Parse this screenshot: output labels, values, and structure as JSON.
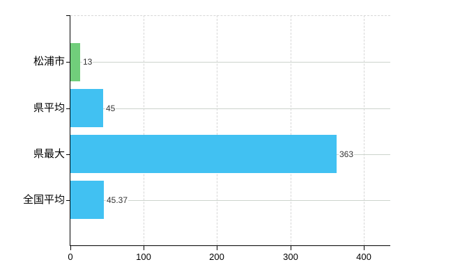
{
  "chart_data": {
    "type": "bar",
    "orientation": "horizontal",
    "categories": [
      "松浦市",
      "県平均",
      "県最大",
      "全国平均"
    ],
    "values": [
      13,
      45,
      363,
      45.37
    ],
    "value_labels": [
      "13",
      "45",
      "363",
      "45.37"
    ],
    "bar_colors": [
      "#71ce7b",
      "#41c1f2",
      "#41c1f2",
      "#41c1f2"
    ],
    "x_ticks": [
      0,
      100,
      200,
      300,
      400
    ],
    "x_tick_labels": [
      "0",
      "100",
      "200",
      "300",
      "400"
    ],
    "xlim": [
      0,
      436
    ],
    "grid": {
      "vertical_style": "dashed",
      "horizontal_style": "solid",
      "top_border_style": "dashed"
    },
    "legend": "none",
    "colors": {
      "axis": "#000000",
      "vertical_grid": "#d6d6d6",
      "horizontal_grid": "#ccd3cc",
      "category_label": "#000000",
      "value_label": "#333333",
      "tick_label": "#000000",
      "background": "#ffffff"
    }
  }
}
